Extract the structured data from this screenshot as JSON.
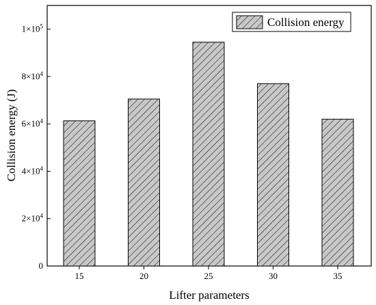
{
  "chart_data": {
    "type": "bar",
    "categories": [
      "15",
      "20",
      "25",
      "30",
      "35"
    ],
    "series": [
      {
        "name": "Collision energy",
        "values": [
          61300,
          70500,
          94500,
          77000,
          62000
        ]
      }
    ],
    "xlabel": "Lifter parameters",
    "ylabel": "Collision energy (J)",
    "ylim": [
      0,
      110000
    ],
    "yticks": [
      {
        "value": 0,
        "mant": "0",
        "exp": ""
      },
      {
        "value": 20000,
        "mant": "2×10",
        "exp": "4"
      },
      {
        "value": 40000,
        "mant": "4×10",
        "exp": "4"
      },
      {
        "value": 60000,
        "mant": "6×10",
        "exp": "4"
      },
      {
        "value": 80000,
        "mant": "8×10",
        "exp": "4"
      },
      {
        "value": 100000,
        "mant": "1×10",
        "exp": "5"
      }
    ],
    "legend_position": "top-right",
    "grid": false,
    "bar_fill": "#c8c8c8",
    "hatch": "diagonal"
  }
}
